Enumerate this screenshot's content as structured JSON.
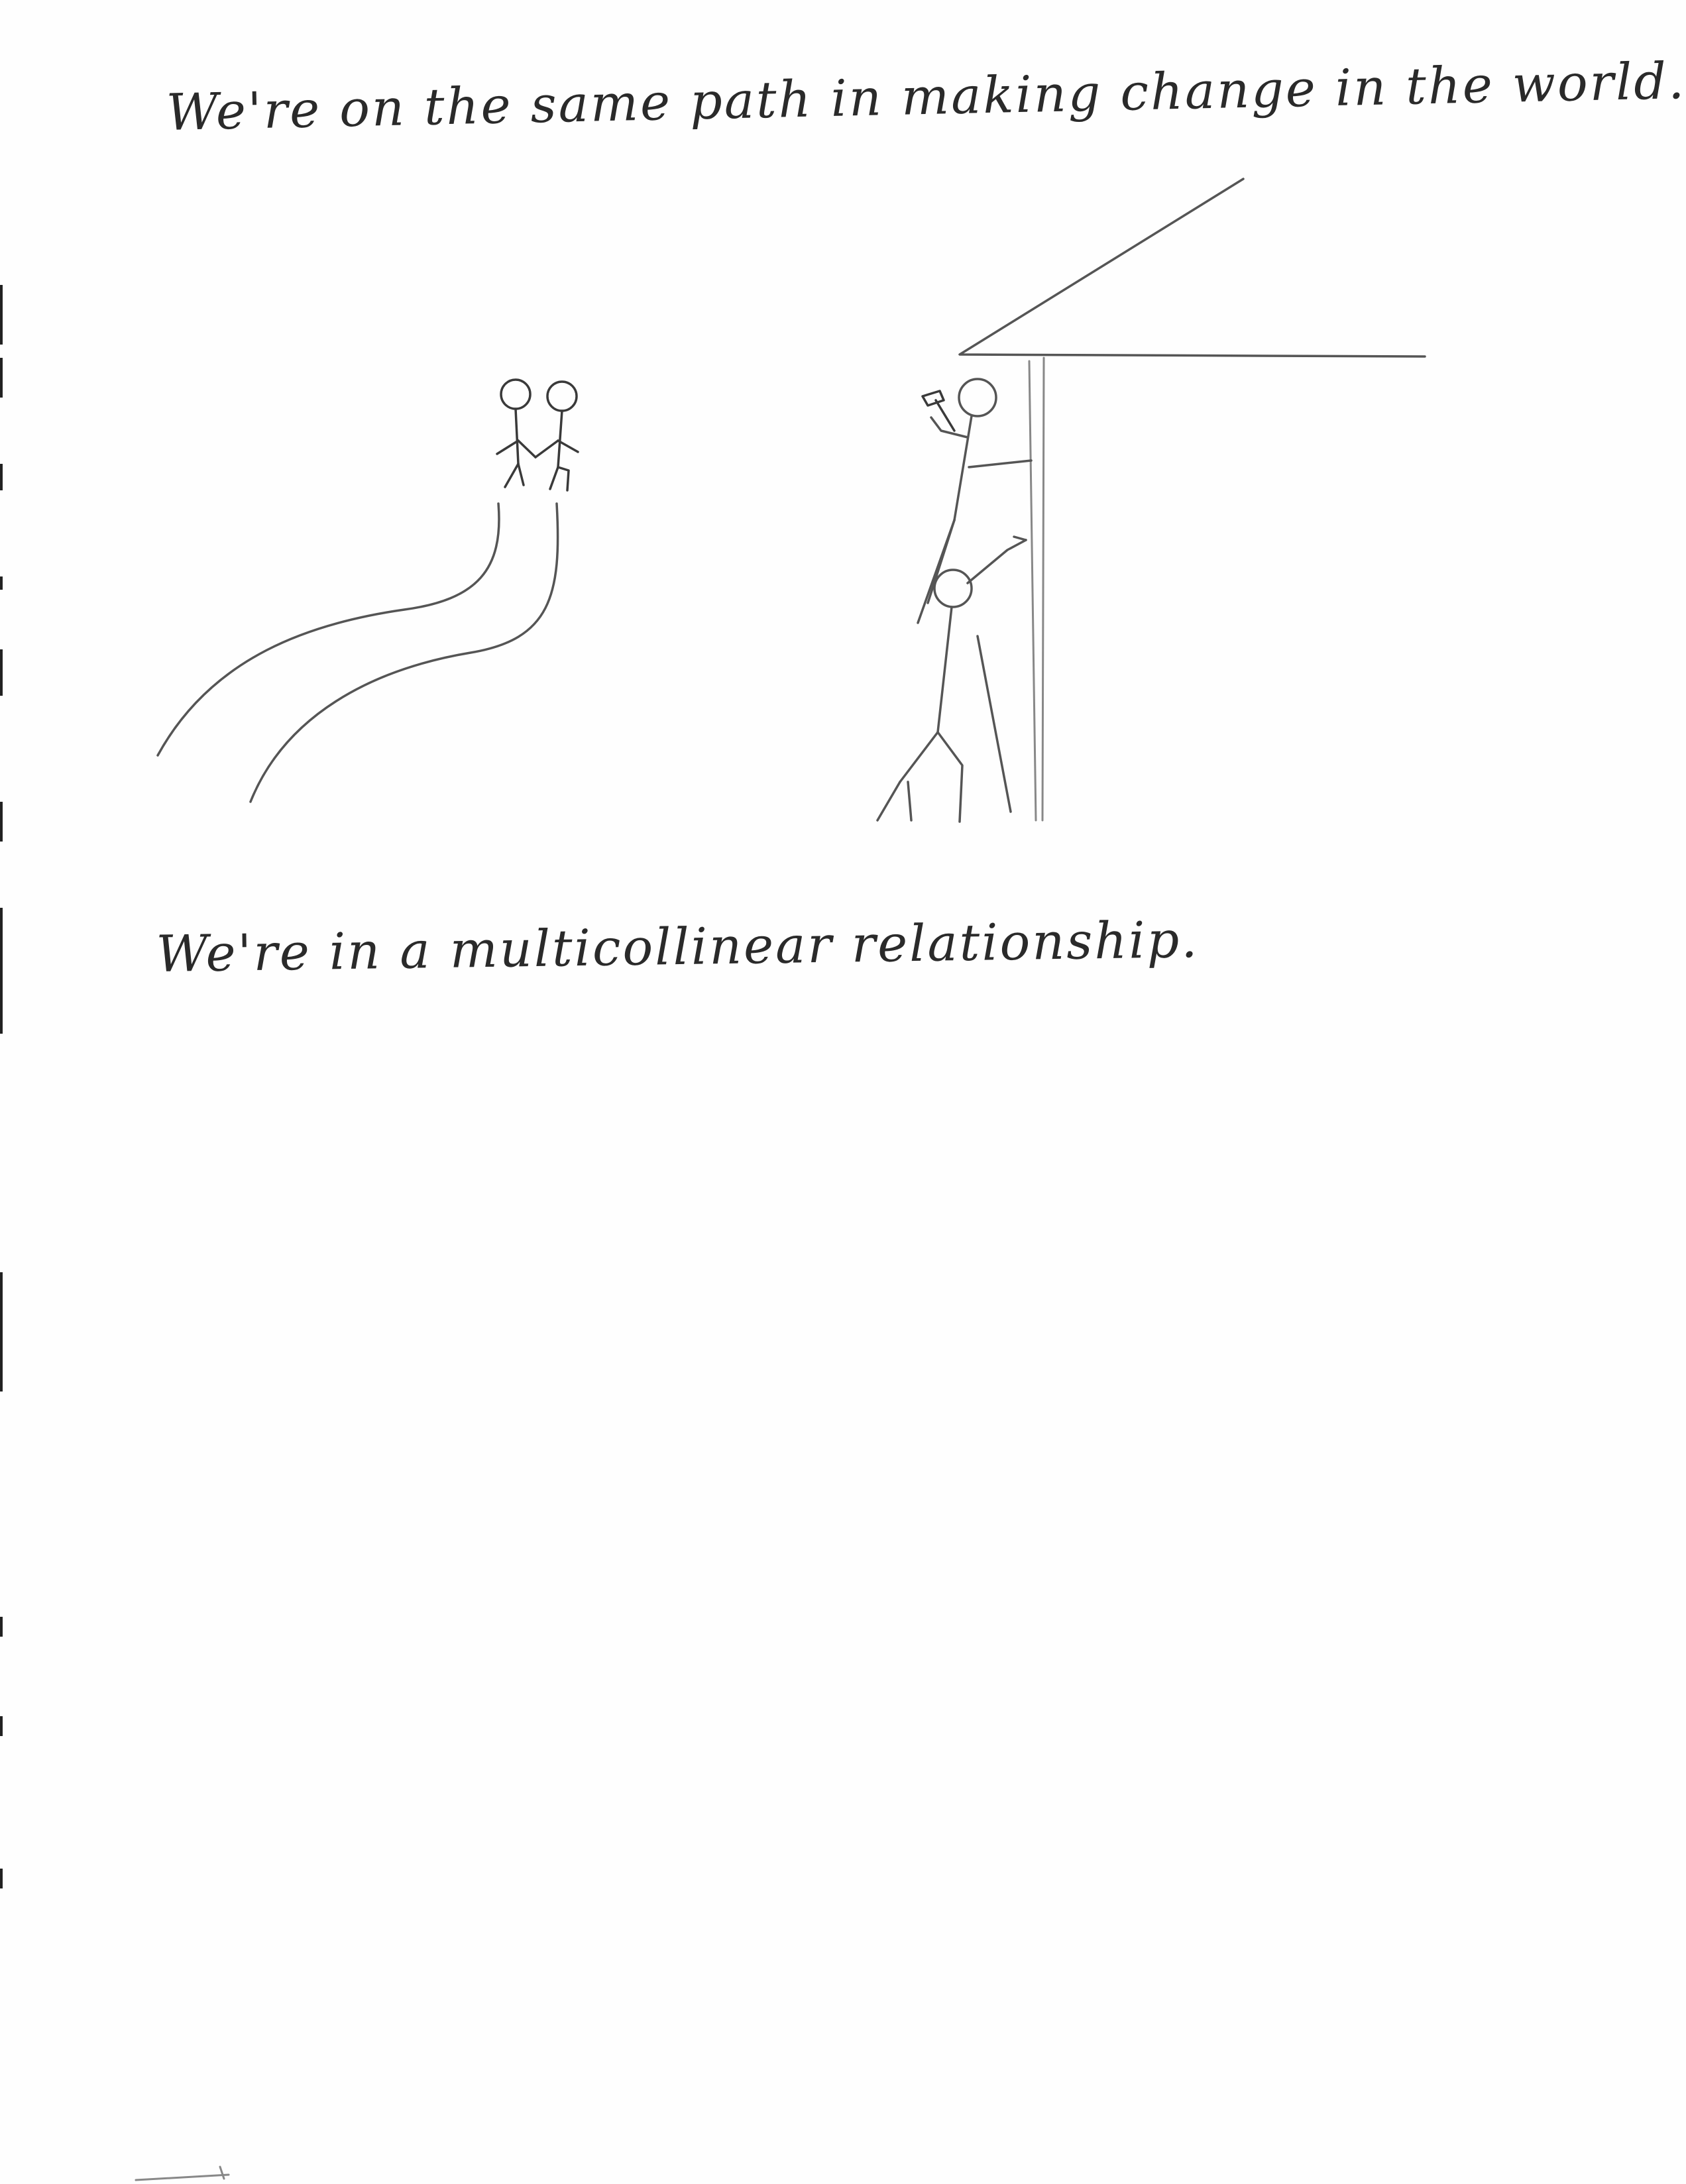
{
  "captions": {
    "first": "We're on the same path in making change in the world.",
    "second": "We're in a multicollinear relationship."
  },
  "colors": {
    "paper": "#fefefe",
    "ink": "#2a2a2a",
    "pencil": "#555555"
  }
}
